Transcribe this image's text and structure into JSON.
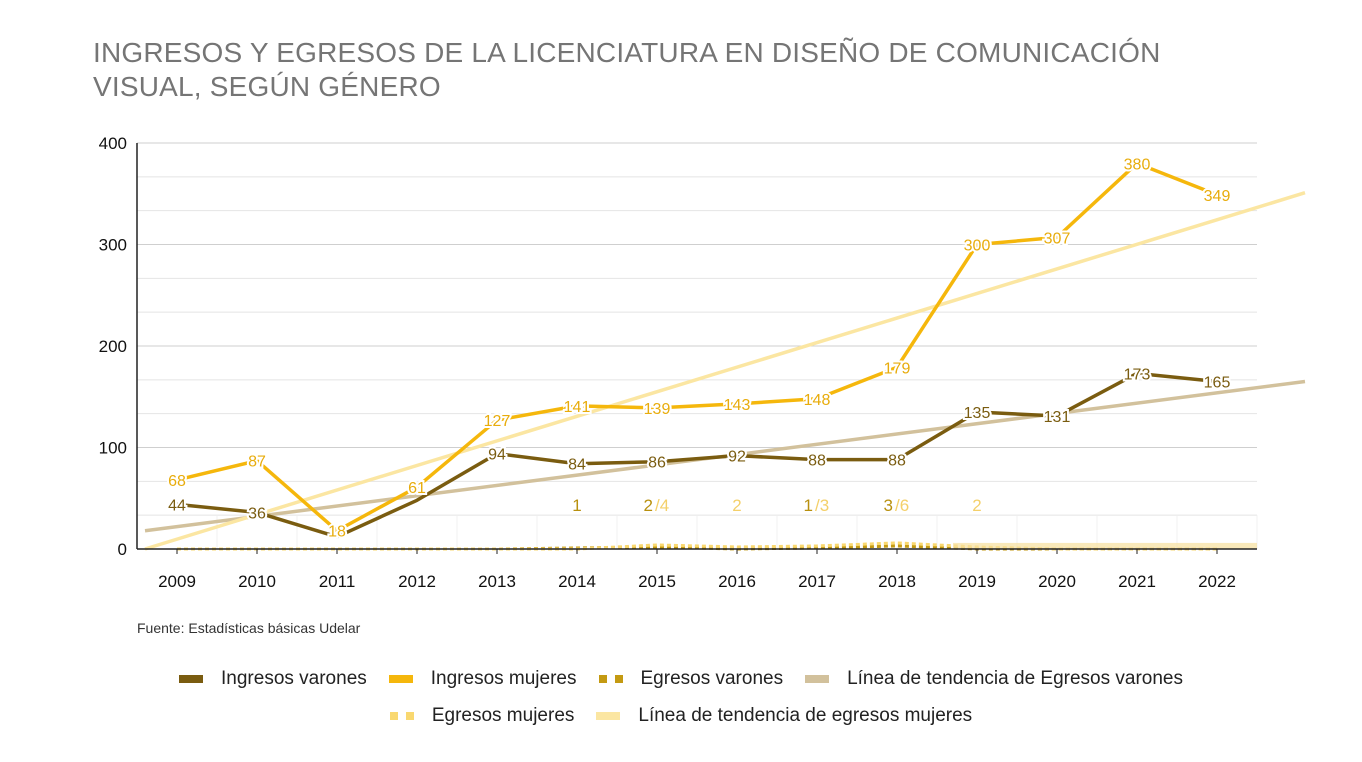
{
  "title": "INGRESOS Y EGRESOS DE LA LICENCIATURA EN DISEÑO DE COMUNICACIÓN VISUAL, SEGÚN GÉNERO",
  "source": "Fuente: Estadísticas básicas Udelar",
  "legend": [
    {
      "label": "Ingresos varones",
      "color": "#7a5c10",
      "style": "solid"
    },
    {
      "label": "Ingresos mujeres",
      "color": "#f5b70c",
      "style": "solid"
    },
    {
      "label": "Egresos varones",
      "color": "#c49a12",
      "style": "dashed"
    },
    {
      "label": "Línea de tendencia de Egresos varones",
      "color": "#d2c19c",
      "style": "solid"
    },
    {
      "label": "Egresos mujeres",
      "color": "#f9d870",
      "style": "dashed"
    },
    {
      "label": "Línea de tendencia de egresos mujeres",
      "color": "#fbe6a2",
      "style": "solid"
    }
  ],
  "chart_data": {
    "type": "line",
    "categories": [
      "2009",
      "2010",
      "2011",
      "2012",
      "2013",
      "2014",
      "2015",
      "2016",
      "2017",
      "2018",
      "2019",
      "2020",
      "2021",
      "2022"
    ],
    "ylim": [
      0,
      400
    ],
    "yticks": [
      0,
      100,
      200,
      300,
      400
    ],
    "grid": true,
    "legend_position": "bottom",
    "series": [
      {
        "name": "Ingresos varones",
        "color": "#7a5c10",
        "values": [
          44,
          36,
          12,
          48,
          94,
          84,
          86,
          92,
          88,
          88,
          135,
          131,
          173,
          165
        ],
        "labels": [
          "44",
          "36",
          "",
          "",
          "94",
          "84",
          "86",
          "92",
          "88",
          "88",
          "135",
          "131",
          "173",
          "165"
        ],
        "label_color": "#7a5c10"
      },
      {
        "name": "Ingresos mujeres",
        "color": "#f5b70c",
        "values": [
          68,
          87,
          18,
          61,
          127,
          141,
          139,
          143,
          148,
          179,
          300,
          307,
          380,
          349
        ],
        "labels": [
          "68",
          "87",
          "18",
          "61",
          "127",
          "141",
          "139",
          "143",
          "148",
          "179",
          "300",
          "307",
          "380",
          "349"
        ],
        "label_color": "#e8ac0c"
      },
      {
        "name": "Egresos varones",
        "color": "#c49a12",
        "values": [
          0,
          0,
          0,
          0,
          0,
          1,
          2,
          0,
          1,
          3,
          0,
          0,
          0,
          0
        ],
        "labels": [
          "",
          "",
          "",
          "",
          "",
          "1",
          "2",
          "",
          "1",
          "3",
          "",
          "",
          "",
          ""
        ],
        "label_color": "#b8900e"
      },
      {
        "name": "Egresos mujeres",
        "color": "#f9d870",
        "values": [
          0,
          0,
          0,
          0,
          0,
          0,
          4,
          2,
          3,
          6,
          2,
          0,
          0,
          0
        ],
        "labels": [
          "",
          "",
          "",
          "",
          "",
          "",
          "/4",
          "2",
          "/3",
          "/6",
          "2",
          "",
          "",
          ""
        ],
        "label_color": "#f4d06a"
      }
    ],
    "trendlines": [
      {
        "name": "Línea de tendencia de Egresos varones",
        "color": "#d2c19c",
        "from": [
          2008.6,
          18
        ],
        "to": [
          2023.1,
          165
        ]
      },
      {
        "name": "Línea de tendencia de egresos mujeres",
        "color": "#fbe6a2",
        "from": [
          2008.6,
          0
        ],
        "to": [
          2023.1,
          351
        ]
      }
    ]
  }
}
